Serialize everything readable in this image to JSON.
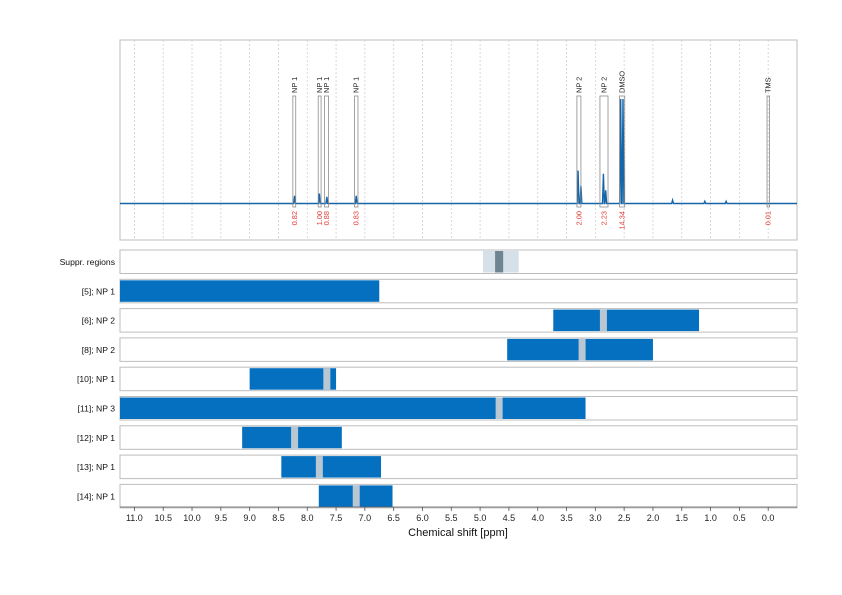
{
  "chart_data": {
    "type": "nmr-spectrum-with-range-bars",
    "xlabel": "Chemical shift [ppm]",
    "xlim": [
      11.25,
      -0.5
    ],
    "xticks": [
      11.0,
      10.5,
      10.0,
      9.5,
      9.0,
      8.5,
      8.0,
      7.5,
      7.0,
      6.5,
      6.0,
      5.5,
      5.0,
      4.5,
      4.0,
      3.5,
      3.0,
      2.5,
      2.0,
      1.5,
      1.0,
      0.5,
      0.0
    ],
    "xtick_labels": [
      "11.0",
      "10.5",
      "10.0",
      "9.5",
      "9.0",
      "8.5",
      "8.0",
      "7.5",
      "7.0",
      "6.5",
      "6.0",
      "5.5",
      "5.0",
      "4.5",
      "4.0",
      "3.5",
      "3.0",
      "2.5",
      "2.0",
      "1.5",
      "1.0",
      "0.5",
      "0.0"
    ],
    "grid": true,
    "colors": {
      "spectrum": "#1565a8",
      "bar": "#0570c0",
      "marker": "#b8c7d2",
      "integral": "#e53935",
      "frame": "#bdbdbd"
    },
    "spectrum_peaks": [
      {
        "ppm": 8.22,
        "height": 0.07
      },
      {
        "ppm": 7.79,
        "height": 0.09
      },
      {
        "ppm": 7.66,
        "height": 0.06
      },
      {
        "ppm": 7.15,
        "height": 0.07
      },
      {
        "ppm": 3.3,
        "height": 0.3
      },
      {
        "ppm": 3.25,
        "height": 0.16
      },
      {
        "ppm": 2.86,
        "height": 0.27
      },
      {
        "ppm": 2.82,
        "height": 0.12
      },
      {
        "ppm": 2.56,
        "height": 0.95
      },
      {
        "ppm": 2.52,
        "height": 0.95
      },
      {
        "ppm": 1.66,
        "height": 0.03
      },
      {
        "ppm": 1.1,
        "height": 0.02
      },
      {
        "ppm": 0.73,
        "height": 0.02
      }
    ],
    "peak_annotations": [
      {
        "label": "NP 1",
        "from": 8.25,
        "to": 8.2,
        "integral": "0.82"
      },
      {
        "label": "NP 1",
        "from": 7.81,
        "to": 7.76,
        "integral": "1.00"
      },
      {
        "label": "NP 1",
        "from": 7.7,
        "to": 7.63,
        "integral": "0.88"
      },
      {
        "label": "NP 1",
        "from": 7.18,
        "to": 7.12,
        "integral": "0.83"
      },
      {
        "label": "NP 2",
        "from": 3.32,
        "to": 3.25,
        "integral": "2.00"
      },
      {
        "label": "NP 2",
        "from": 2.92,
        "to": 2.78,
        "integral": "2.23"
      },
      {
        "label": "DMSO",
        "from": 2.58,
        "to": 2.49,
        "integral": "14.34"
      },
      {
        "label": "TMS",
        "from": 0.02,
        "to": -0.02,
        "integral": "0.01"
      }
    ],
    "rows": [
      {
        "label": "Suppr. regions",
        "kind": "suppression",
        "light": [
          4.95,
          4.33
        ],
        "dark": [
          4.74,
          4.6
        ]
      },
      {
        "label": "[5]; NP 1",
        "from": 11.25,
        "to": 6.75,
        "markers": []
      },
      {
        "label": "[6]; NP 2",
        "from": 3.73,
        "to": 1.2,
        "markers": [
          2.86
        ]
      },
      {
        "label": "[8]; NP 2",
        "from": 4.53,
        "to": 2.0,
        "markers": [
          3.23
        ]
      },
      {
        "label": "[10]; NP 1",
        "from": 9.0,
        "to": 7.5,
        "markers": [
          7.66
        ]
      },
      {
        "label": "[11]; NP 3",
        "from": 11.25,
        "to": 3.17,
        "markers": [
          4.67
        ]
      },
      {
        "label": "[12]; NP 1",
        "from": 9.13,
        "to": 7.4,
        "markers": [
          8.22
        ]
      },
      {
        "label": "[13]; NP 1",
        "from": 8.45,
        "to": 6.72,
        "markers": [
          7.79
        ]
      },
      {
        "label": "[14]; NP 1",
        "from": 7.8,
        "to": 6.52,
        "markers": [
          7.15
        ]
      }
    ]
  }
}
